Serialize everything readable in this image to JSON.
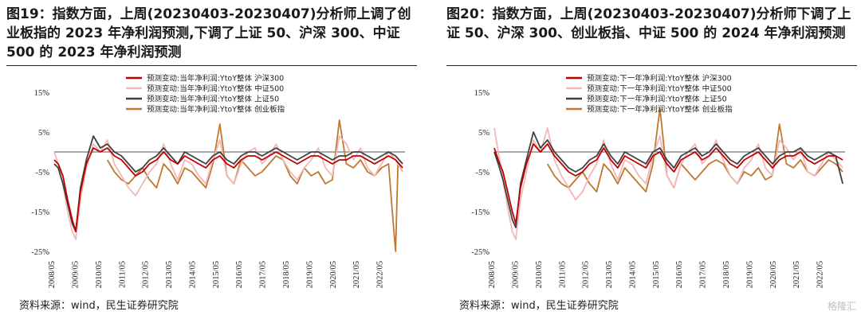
{
  "charts": [
    {
      "title": "图19：指数方面，上周(20230403-20230407)分析师上调了创业板指的 2023 年净利润预测,下调了上证 50、沪深 300、中证 500 的 2023 年净利润预测",
      "source": "资料来源：wind，民生证券研究院"
    },
    {
      "title": "图20：指数方面，上周(20230403-20230407)分析师下调了上证 50、沪深 300、创业板指、中证 500 的 2024 年净利润预测",
      "source": "资料来源：wind，民生证券研究院"
    }
  ],
  "watermark": "格隆汇",
  "chart_data": [
    {
      "type": "line",
      "y_ticks": [
        "15%",
        "5%",
        "-5%",
        "-15%",
        "-25%"
      ],
      "ylim": [
        -25,
        15
      ],
      "x_ticks": [
        "2008/05",
        "2009/05",
        "2010/05",
        "2011/05",
        "2012/05",
        "2013/05",
        "2014/05",
        "2015/05",
        "2016/05",
        "2017/05",
        "2018/05",
        "2019/05",
        "2020/05",
        "2021/05",
        "2022/05"
      ],
      "xlim": [
        2008.33,
        2023.3
      ],
      "series": [
        {
          "name": "预测变动:当年净利润:YtoY整体 沪深300",
          "color": "#c00000",
          "x": [
            2008.33,
            2008.5,
            2008.7,
            2008.9,
            2009.1,
            2009.25,
            2009.45,
            2009.7,
            2010.0,
            2010.3,
            2010.6,
            2010.9,
            2011.2,
            2011.5,
            2011.8,
            2012.1,
            2012.4,
            2012.7,
            2013.0,
            2013.3,
            2013.6,
            2013.9,
            2014.2,
            2014.5,
            2014.8,
            2015.1,
            2015.4,
            2015.7,
            2016.0,
            2016.3,
            2016.6,
            2016.9,
            2017.2,
            2017.5,
            2017.8,
            2018.1,
            2018.4,
            2018.7,
            2019.0,
            2019.3,
            2019.6,
            2019.9,
            2020.2,
            2020.5,
            2020.8,
            2021.1,
            2021.4,
            2021.7,
            2022.0,
            2022.3,
            2022.6,
            2022.9,
            2023.2
          ],
          "y": [
            -2,
            -3,
            -6,
            -12,
            -17,
            -20,
            -10,
            -3,
            1,
            0,
            1,
            -1,
            -2,
            -4,
            -6,
            -5,
            -3,
            -2,
            0,
            -2,
            -3,
            -1,
            -2,
            -3,
            -4,
            -2,
            -1,
            -3,
            -4,
            -2,
            -1,
            -1,
            -2,
            -1,
            0,
            -1,
            -2,
            -3,
            -2,
            -1,
            -1,
            -2,
            -3,
            -2,
            -2,
            -1,
            -1,
            -2,
            -3,
            -2,
            -1,
            -2,
            -4
          ]
        },
        {
          "name": "预测变动:当年净利润:YtoY整体 中证500",
          "color": "#f2b8b8",
          "x": [
            2008.33,
            2008.5,
            2008.7,
            2008.9,
            2009.1,
            2009.25,
            2009.45,
            2009.7,
            2010.0,
            2010.3,
            2010.6,
            2010.9,
            2011.2,
            2011.5,
            2011.8,
            2012.1,
            2012.4,
            2012.7,
            2013.0,
            2013.3,
            2013.6,
            2013.9,
            2014.2,
            2014.5,
            2014.8,
            2015.1,
            2015.4,
            2015.7,
            2016.0,
            2016.3,
            2016.6,
            2016.9,
            2017.2,
            2017.5,
            2017.8,
            2018.1,
            2018.4,
            2018.7,
            2019.0,
            2019.3,
            2019.6,
            2019.9,
            2020.2,
            2020.5,
            2020.8,
            2021.1,
            2021.4,
            2021.7,
            2022.0,
            2022.3,
            2022.6,
            2022.9,
            2023.2
          ],
          "y": [
            0,
            -3,
            -8,
            -15,
            -20,
            -22,
            -12,
            -4,
            2,
            0,
            3,
            -3,
            -6,
            -9,
            -11,
            -8,
            -5,
            -3,
            2,
            -3,
            -7,
            -2,
            -3,
            -6,
            -8,
            -2,
            3,
            -6,
            -8,
            -3,
            0,
            1,
            -3,
            -1,
            2,
            -2,
            -5,
            -7,
            -4,
            -2,
            1,
            -4,
            -6,
            4,
            2,
            -2,
            1,
            -4,
            -6,
            -3,
            0,
            -2,
            -5
          ]
        },
        {
          "name": "预测变动:当年净利润:YtoY整体 上证50",
          "color": "#404040",
          "x": [
            2008.33,
            2008.5,
            2008.7,
            2008.9,
            2009.1,
            2009.25,
            2009.45,
            2009.7,
            2010.0,
            2010.3,
            2010.6,
            2010.9,
            2011.2,
            2011.5,
            2011.8,
            2012.1,
            2012.4,
            2012.7,
            2013.0,
            2013.3,
            2013.6,
            2013.9,
            2014.2,
            2014.5,
            2014.8,
            2015.1,
            2015.4,
            2015.7,
            2016.0,
            2016.3,
            2016.6,
            2016.9,
            2017.2,
            2017.5,
            2017.8,
            2018.1,
            2018.4,
            2018.7,
            2019.0,
            2019.3,
            2019.6,
            2019.9,
            2020.2,
            2020.5,
            2020.8,
            2021.1,
            2021.4,
            2021.7,
            2022.0,
            2022.3,
            2022.6,
            2022.9,
            2023.2
          ],
          "y": [
            -3,
            -4,
            -8,
            -13,
            -18,
            -20,
            -9,
            -2,
            4,
            1,
            2,
            0,
            -1,
            -3,
            -5,
            -4,
            -2,
            -1,
            1,
            -1,
            -3,
            0,
            -1,
            -2,
            -3,
            -1,
            0,
            -2,
            -3,
            -1,
            0,
            0,
            -1,
            0,
            1,
            0,
            -1,
            -2,
            -1,
            0,
            0,
            -1,
            -2,
            -1,
            -1,
            0,
            0,
            -1,
            -2,
            -1,
            0,
            -1,
            -3
          ]
        },
        {
          "name": "预测变动:当年净利润:YtoY整体 创业板指",
          "color": "#c07830",
          "x": [
            2010.6,
            2010.9,
            2011.2,
            2011.5,
            2011.8,
            2012.1,
            2012.4,
            2012.7,
            2013.0,
            2013.3,
            2013.6,
            2013.9,
            2014.2,
            2014.5,
            2014.8,
            2015.1,
            2015.4,
            2015.7,
            2016.0,
            2016.3,
            2016.6,
            2016.9,
            2017.2,
            2017.5,
            2017.8,
            2018.1,
            2018.4,
            2018.7,
            2019.0,
            2019.3,
            2019.6,
            2019.9,
            2020.2,
            2020.5,
            2020.8,
            2021.1,
            2021.4,
            2021.7,
            2022.0,
            2022.3,
            2022.6,
            2022.8,
            2022.9,
            2023.0,
            2023.2
          ],
          "y": [
            -2,
            -5,
            -7,
            -8,
            -6,
            -4,
            -7,
            -9,
            -3,
            -5,
            -8,
            -4,
            -5,
            -7,
            -9,
            -3,
            7,
            -6,
            -8,
            -2,
            -4,
            -6,
            -5,
            -3,
            -1,
            -2,
            -6,
            -8,
            -4,
            -6,
            -5,
            -8,
            -7,
            8,
            -3,
            -4,
            -2,
            -5,
            -6,
            -4,
            -3,
            -18,
            -25,
            -3,
            -5
          ]
        }
      ]
    },
    {
      "type": "line",
      "y_ticks": [
        "15%",
        "5%",
        "-5%",
        "-15%",
        "-25%"
      ],
      "ylim": [
        -25,
        15
      ],
      "x_ticks": [
        "2008/05",
        "2009/05",
        "2010/05",
        "2011/05",
        "2012/05",
        "2013/05",
        "2014/05",
        "2015/05",
        "2016/05",
        "2017/05",
        "2018/05",
        "2019/05",
        "2020/05",
        "2021/05",
        "2022/05"
      ],
      "xlim": [
        2008.33,
        2023.3
      ],
      "series": [
        {
          "name": "预测变动:下一年净利润:YtoY整体 沪深300",
          "color": "#c00000",
          "x": [
            2008.33,
            2008.5,
            2008.7,
            2008.9,
            2009.1,
            2009.25,
            2009.45,
            2009.7,
            2010.0,
            2010.3,
            2010.6,
            2010.9,
            2011.2,
            2011.5,
            2011.8,
            2012.1,
            2012.4,
            2012.7,
            2013.0,
            2013.3,
            2013.6,
            2013.9,
            2014.2,
            2014.5,
            2014.8,
            2015.1,
            2015.4,
            2015.7,
            2016.0,
            2016.3,
            2016.6,
            2016.9,
            2017.2,
            2017.5,
            2017.8,
            2018.1,
            2018.4,
            2018.7,
            2019.0,
            2019.3,
            2019.6,
            2019.9,
            2020.2,
            2020.5,
            2020.8,
            2021.1,
            2021.4,
            2021.7,
            2022.0,
            2022.3,
            2022.6,
            2022.9,
            2023.2
          ],
          "y": [
            1,
            -2,
            -5,
            -10,
            -15,
            -18,
            -9,
            -3,
            2,
            0,
            2,
            -1,
            -3,
            -5,
            -6,
            -5,
            -3,
            -2,
            1,
            -2,
            -4,
            -1,
            -2,
            -3,
            -4,
            -1,
            0,
            -3,
            -5,
            -2,
            -1,
            0,
            -2,
            -1,
            1,
            -1,
            -3,
            -4,
            -2,
            -1,
            0,
            -2,
            -4,
            -2,
            -1,
            -1,
            0,
            -2,
            -3,
            -2,
            -1,
            -1,
            -2
          ]
        },
        {
          "name": "预测变动:下一年净利润:YtoY整体 中证500",
          "color": "#f2b8b8",
          "x": [
            2008.33,
            2008.5,
            2008.7,
            2008.9,
            2009.1,
            2009.25,
            2009.45,
            2009.7,
            2010.0,
            2010.3,
            2010.6,
            2010.9,
            2011.2,
            2011.5,
            2011.8,
            2012.1,
            2012.4,
            2012.7,
            2013.0,
            2013.3,
            2013.6,
            2013.9,
            2014.2,
            2014.5,
            2014.8,
            2015.1,
            2015.4,
            2015.7,
            2016.0,
            2016.3,
            2016.6,
            2016.9,
            2017.2,
            2017.5,
            2017.8,
            2018.1,
            2018.4,
            2018.7,
            2019.0,
            2019.3,
            2019.6,
            2019.9,
            2020.2,
            2020.5,
            2020.8,
            2021.1,
            2021.4,
            2021.7,
            2022.0,
            2022.3,
            2022.6,
            2022.9,
            2023.2
          ],
          "y": [
            6,
            0,
            -7,
            -14,
            -20,
            -22,
            -12,
            -5,
            3,
            0,
            6,
            -2,
            -6,
            -9,
            -12,
            -10,
            -6,
            -3,
            3,
            -3,
            -7,
            -2,
            -3,
            -6,
            -8,
            -1,
            4,
            -6,
            -9,
            -3,
            0,
            2,
            -3,
            -1,
            3,
            -2,
            -6,
            -8,
            -4,
            -2,
            2,
            -4,
            -6,
            3,
            1,
            -2,
            1,
            -5,
            -6,
            -3,
            0,
            -2,
            -4
          ]
        },
        {
          "name": "预测变动:下一年净利润:YtoY整体 上证50",
          "color": "#404040",
          "x": [
            2008.33,
            2008.5,
            2008.7,
            2008.9,
            2009.1,
            2009.25,
            2009.45,
            2009.7,
            2010.0,
            2010.3,
            2010.6,
            2010.9,
            2011.2,
            2011.5,
            2011.8,
            2012.1,
            2012.4,
            2012.7,
            2013.0,
            2013.3,
            2013.6,
            2013.9,
            2014.2,
            2014.5,
            2014.8,
            2015.1,
            2015.4,
            2015.7,
            2016.0,
            2016.3,
            2016.6,
            2016.9,
            2017.2,
            2017.5,
            2017.8,
            2018.1,
            2018.4,
            2018.7,
            2019.0,
            2019.3,
            2019.6,
            2019.9,
            2020.2,
            2020.5,
            2020.8,
            2021.1,
            2021.4,
            2021.7,
            2022.0,
            2022.3,
            2022.6,
            2022.9,
            2023.2
          ],
          "y": [
            0,
            -3,
            -7,
            -12,
            -17,
            -19,
            -8,
            -2,
            5,
            1,
            3,
            0,
            -2,
            -4,
            -5,
            -4,
            -2,
            -1,
            2,
            -1,
            -3,
            0,
            -1,
            -2,
            -3,
            0,
            1,
            -2,
            -4,
            -1,
            0,
            1,
            -1,
            0,
            2,
            0,
            -2,
            -3,
            -1,
            0,
            1,
            -1,
            -3,
            -1,
            0,
            0,
            1,
            -1,
            -2,
            -1,
            0,
            -1,
            -8
          ]
        },
        {
          "name": "预测变动:下一年净利润:YtoY整体 创业板指",
          "color": "#c07830",
          "x": [
            2010.6,
            2010.9,
            2011.2,
            2011.5,
            2011.8,
            2012.1,
            2012.4,
            2012.7,
            2013.0,
            2013.3,
            2013.6,
            2013.9,
            2014.2,
            2014.5,
            2014.8,
            2015.1,
            2015.4,
            2015.7,
            2016.0,
            2016.3,
            2016.6,
            2016.9,
            2017.2,
            2017.5,
            2017.8,
            2018.1,
            2018.4,
            2018.7,
            2019.0,
            2019.3,
            2019.6,
            2019.9,
            2020.2,
            2020.5,
            2020.8,
            2021.1,
            2021.4,
            2021.7,
            2022.0,
            2022.3,
            2022.6,
            2022.9,
            2023.2
          ],
          "y": [
            -3,
            -6,
            -8,
            -9,
            -7,
            -5,
            -8,
            -10,
            -3,
            -5,
            -8,
            -4,
            -6,
            -8,
            -10,
            -3,
            11,
            -6,
            -9,
            -3,
            -5,
            -7,
            -5,
            -3,
            -2,
            -3,
            -6,
            -8,
            -5,
            -6,
            -4,
            -7,
            -6,
            7,
            -3,
            -4,
            -2,
            -5,
            -6,
            -4,
            -2,
            -3,
            -5
          ]
        }
      ]
    }
  ]
}
